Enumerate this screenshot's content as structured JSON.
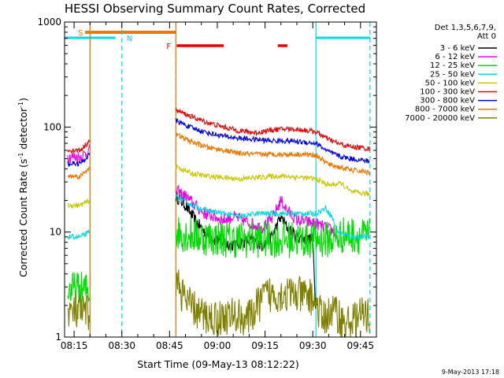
{
  "chart_data": {
    "type": "line",
    "title": "HESSI Observing Summary Count Rates, Corrected",
    "xlabel": "Start Time (09-May-13 08:12:22)",
    "ylabel": "Corrected Count Rate (s",
    "ylabel_sup1": "-1",
    "ylabel_mid": " detector",
    "ylabel_sup2": "-1",
    "ylabel_end": ")",
    "y_scale": "log",
    "ylim": [
      1,
      1000
    ],
    "xlim": [
      "08:12",
      "09:50"
    ],
    "x_ticks": [
      "08:15",
      "08:30",
      "08:45",
      "09:00",
      "09:15",
      "09:30",
      "09:45"
    ],
    "y_ticks": [
      "1",
      "10",
      "100",
      "1000"
    ],
    "timestamp": "9-May-2013 17:18",
    "legend": {
      "placement": "right",
      "header_line1": "Det 1,3,5,6,7,9,",
      "header_line2": "Att 0"
    },
    "flag_labels": {
      "saa": "S",
      "night": "N",
      "flare": "F"
    },
    "flag_colors": {
      "saa": "#f07800",
      "night": "#00dcdc",
      "flare": "#ee0000"
    },
    "flags": {
      "saa_bar": [
        "08:16",
        "08:47"
      ],
      "night_bar_1": [
        "08:12",
        "08:28"
      ],
      "night_bar_2": [
        "09:31",
        "09:48"
      ],
      "flare_bar_1": [
        "08:47",
        "09:02"
      ],
      "flare_bar_2": [
        "09:19",
        "09:22"
      ]
    },
    "boundaries": [
      {
        "time": "08:20",
        "kind": "solid-cyan"
      },
      {
        "time": "08:20",
        "kind": "solid-orange"
      },
      {
        "time": "08:30",
        "kind": "dashed-cyan"
      },
      {
        "time": "08:47",
        "kind": "solid-orange"
      },
      {
        "time": "08:47",
        "kind": "dashed-orange"
      },
      {
        "time": "09:31",
        "kind": "solid-cyan"
      },
      {
        "time": "09:48",
        "kind": "dashed-cyan"
      }
    ],
    "series": [
      {
        "name": "3 - 6 keV",
        "color": "#000000",
        "points": [
          [
            "08:47",
            22
          ],
          [
            "08:50",
            18
          ],
          [
            "08:53",
            13
          ],
          [
            "08:56",
            10
          ],
          [
            "08:59",
            8.5
          ],
          [
            "09:02",
            8
          ],
          [
            "09:05",
            7.5
          ],
          [
            "09:08",
            8
          ],
          [
            "09:11",
            8.5
          ],
          [
            "09:14",
            7.5
          ],
          [
            "09:17",
            9
          ],
          [
            "09:20",
            14
          ],
          [
            "09:22",
            11
          ],
          [
            "09:25",
            9
          ],
          [
            "09:28",
            8.5
          ],
          [
            "09:30",
            8.5
          ],
          [
            "09:31",
            1.6
          ]
        ]
      },
      {
        "name": "6 - 12 keV",
        "color": "#ee00ee",
        "points": [
          [
            "08:13",
            52
          ],
          [
            "08:17",
            52
          ],
          [
            "08:20",
            60
          ],
          [
            "08:47",
            25
          ],
          [
            "08:50",
            22
          ],
          [
            "08:53",
            18
          ],
          [
            "08:56",
            15
          ],
          [
            "08:59",
            14
          ],
          [
            "09:02",
            13
          ],
          [
            "09:05",
            14
          ],
          [
            "09:08",
            13
          ],
          [
            "09:11",
            12
          ],
          [
            "09:14",
            11
          ],
          [
            "09:17",
            13
          ],
          [
            "09:20",
            20
          ],
          [
            "09:22",
            16
          ],
          [
            "09:25",
            13
          ],
          [
            "09:28",
            12.5
          ],
          [
            "09:31",
            12
          ],
          [
            "09:34",
            11
          ],
          [
            "09:37",
            10
          ]
        ]
      },
      {
        "name": "12 - 25 keV",
        "color": "#00dd00",
        "points": [
          [
            "08:13",
            2.8
          ],
          [
            "08:20",
            2.8
          ],
          [
            "08:47",
            10
          ],
          [
            "08:55",
            9
          ],
          [
            "09:05",
            8.5
          ],
          [
            "09:15",
            8.5
          ],
          [
            "09:25",
            8.5
          ],
          [
            "09:31",
            8.5
          ],
          [
            "09:36",
            8.5
          ],
          [
            "09:40",
            9.5
          ],
          [
            "09:48",
            9
          ]
        ]
      },
      {
        "name": "25 - 50 keV",
        "color": "#00dcdc",
        "points": [
          [
            "08:13",
            9
          ],
          [
            "08:17",
            9
          ],
          [
            "08:20",
            10
          ],
          [
            "08:47",
            22
          ],
          [
            "08:52",
            18
          ],
          [
            "08:57",
            16
          ],
          [
            "09:02",
            15
          ],
          [
            "09:07",
            14
          ],
          [
            "09:12",
            15
          ],
          [
            "09:17",
            15
          ],
          [
            "09:22",
            15
          ],
          [
            "09:27",
            15
          ],
          [
            "09:31",
            15
          ],
          [
            "09:34",
            17
          ],
          [
            "09:36",
            14
          ],
          [
            "09:38",
            10
          ],
          [
            "09:42",
            9
          ],
          [
            "09:48",
            9
          ]
        ]
      },
      {
        "name": "50 - 100 keV",
        "color": "#c8c800",
        "points": [
          [
            "08:13",
            18
          ],
          [
            "08:17",
            18
          ],
          [
            "08:20",
            20
          ],
          [
            "08:47",
            42
          ],
          [
            "08:52",
            36
          ],
          [
            "08:57",
            34
          ],
          [
            "09:02",
            33
          ],
          [
            "09:07",
            32
          ],
          [
            "09:12",
            33
          ],
          [
            "09:17",
            34
          ],
          [
            "09:22",
            34
          ],
          [
            "09:27",
            33
          ],
          [
            "09:31",
            32
          ],
          [
            "09:35",
            28
          ],
          [
            "09:39",
            29
          ],
          [
            "09:42",
            24
          ],
          [
            "09:48",
            23
          ]
        ]
      },
      {
        "name": "100 - 300 keV",
        "color": "#ee0000",
        "points": [
          [
            "08:13",
            60
          ],
          [
            "08:17",
            60
          ],
          [
            "08:20",
            75
          ],
          [
            "08:47",
            145
          ],
          [
            "08:52",
            125
          ],
          [
            "08:57",
            110
          ],
          [
            "09:02",
            100
          ],
          [
            "09:07",
            92
          ],
          [
            "09:12",
            88
          ],
          [
            "09:17",
            94
          ],
          [
            "09:22",
            96
          ],
          [
            "09:27",
            94
          ],
          [
            "09:31",
            90
          ],
          [
            "09:35",
            76
          ],
          [
            "09:39",
            68
          ],
          [
            "09:42",
            65
          ],
          [
            "09:48",
            62
          ]
        ]
      },
      {
        "name": "300 - 800 keV",
        "color": "#0000ee",
        "points": [
          [
            "08:13",
            45
          ],
          [
            "08:17",
            45
          ],
          [
            "08:20",
            55
          ],
          [
            "08:47",
            115
          ],
          [
            "08:52",
            98
          ],
          [
            "08:57",
            88
          ],
          [
            "09:02",
            82
          ],
          [
            "09:07",
            78
          ],
          [
            "09:12",
            76
          ],
          [
            "09:17",
            74
          ],
          [
            "09:22",
            74
          ],
          [
            "09:27",
            72
          ],
          [
            "09:31",
            70
          ],
          [
            "09:35",
            58
          ],
          [
            "09:39",
            52
          ],
          [
            "09:42",
            50
          ],
          [
            "09:48",
            47
          ]
        ]
      },
      {
        "name": "800 - 7000 keV",
        "color": "#f07800",
        "points": [
          [
            "08:13",
            34
          ],
          [
            "08:17",
            34
          ],
          [
            "08:20",
            42
          ],
          [
            "08:47",
            85
          ],
          [
            "08:52",
            72
          ],
          [
            "08:57",
            64
          ],
          [
            "09:02",
            60
          ],
          [
            "09:07",
            56
          ],
          [
            "09:12",
            55
          ],
          [
            "09:17",
            55
          ],
          [
            "09:22",
            55
          ],
          [
            "09:27",
            55
          ],
          [
            "09:31",
            54
          ],
          [
            "09:35",
            44
          ],
          [
            "09:39",
            41
          ],
          [
            "09:42",
            39
          ],
          [
            "09:48",
            37
          ]
        ]
      },
      {
        "name": "7000 - 20000 keV",
        "color": "#808000",
        "points": [
          [
            "08:13",
            1.7
          ],
          [
            "08:20",
            1.7
          ],
          [
            "08:47",
            3.5
          ],
          [
            "08:50",
            2.2
          ],
          [
            "08:55",
            1.6
          ],
          [
            "09:00",
            1.5
          ],
          [
            "09:05",
            1.6
          ],
          [
            "09:10",
            1.5
          ],
          [
            "09:15",
            2.5
          ],
          [
            "09:20",
            2.6
          ],
          [
            "09:25",
            2.5
          ],
          [
            "09:30",
            2.4
          ],
          [
            "09:33",
            1.5
          ],
          [
            "09:37",
            1.8
          ],
          [
            "09:40",
            1.3
          ],
          [
            "09:45",
            1.6
          ],
          [
            "09:48",
            1.6
          ]
        ]
      }
    ]
  }
}
